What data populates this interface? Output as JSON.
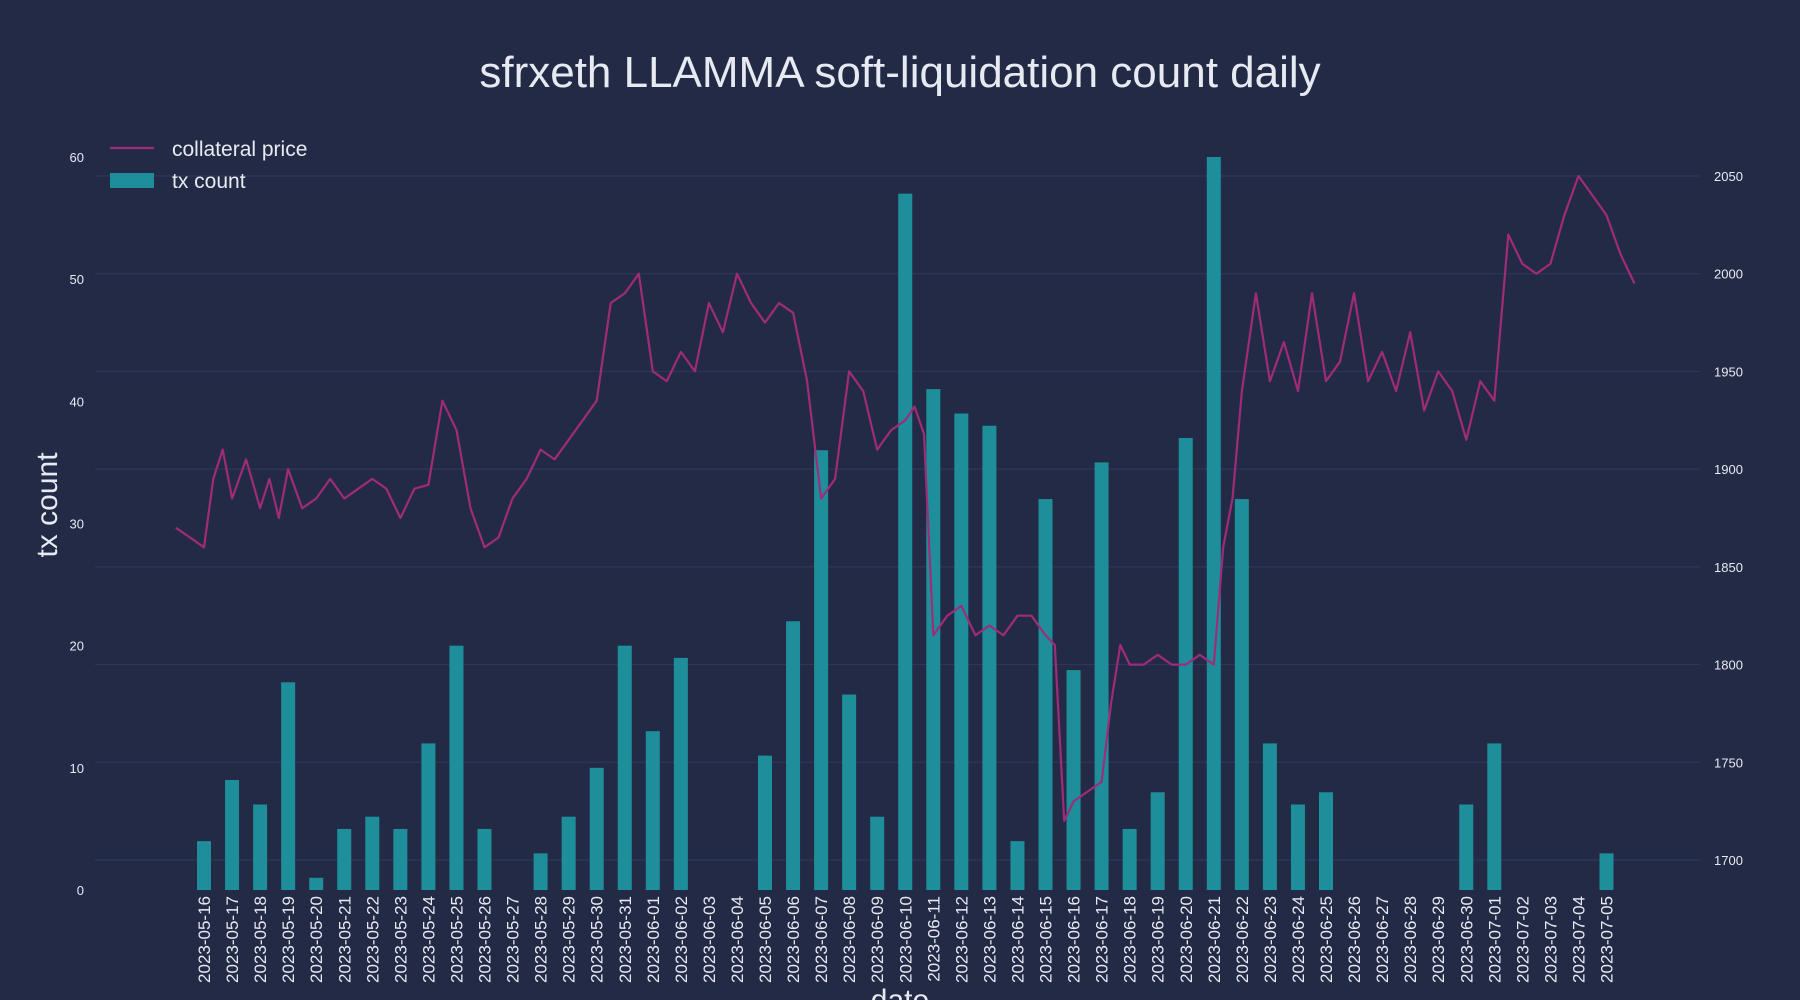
{
  "chart_data": {
    "type": "bar+line",
    "title": "sfrxeth LLAMMA soft-liquidation count daily",
    "ylabel": "tx count",
    "xlabel": "date",
    "legend_position": "top-left",
    "grid": true,
    "ylim": [
      0,
      60
    ],
    "y2lim": [
      1660,
      2055
    ],
    "y_ticks": [
      0,
      10,
      20,
      30,
      40,
      50,
      60
    ],
    "y2_ticks": [
      1700,
      1750,
      1800,
      1850,
      1900,
      1950,
      2000,
      2050
    ],
    "colors": {
      "bar": "#1e8f9a",
      "line": "#a02b78",
      "background": "#222a46",
      "grid": "#2e3757",
      "text": "#e8eaf2"
    },
    "categories": [
      "2023-05-16",
      "2023-05-17",
      "2023-05-18",
      "2023-05-19",
      "2023-05-20",
      "2023-05-21",
      "2023-05-22",
      "2023-05-23",
      "2023-05-24",
      "2023-05-25",
      "2023-05-26",
      "2023-05-27",
      "2023-05-28",
      "2023-05-29",
      "2023-05-30",
      "2023-05-31",
      "2023-06-01",
      "2023-06-02",
      "2023-06-03",
      "2023-06-04",
      "2023-06-05",
      "2023-06-06",
      "2023-06-07",
      "2023-06-08",
      "2023-06-09",
      "2023-06-10",
      "2023-06-11",
      "2023-06-12",
      "2023-06-13",
      "2023-06-14",
      "2023-06-15",
      "2023-06-16",
      "2023-06-17",
      "2023-06-18",
      "2023-06-19",
      "2023-06-20",
      "2023-06-21",
      "2023-06-22",
      "2023-06-23",
      "2023-06-24",
      "2023-06-25",
      "2023-06-26",
      "2023-06-27",
      "2023-06-28",
      "2023-06-29",
      "2023-06-30",
      "2023-07-01",
      "2023-07-02",
      "2023-07-03",
      "2023-07-04",
      "2023-07-05"
    ],
    "series": [
      {
        "name": "tx count",
        "kind": "bar",
        "axis": "left",
        "values": [
          4,
          9,
          7,
          17,
          1,
          5,
          6,
          5,
          12,
          20,
          5,
          0,
          3,
          6,
          10,
          20,
          13,
          19,
          0,
          0,
          11,
          22,
          36,
          16,
          6,
          57,
          41,
          39,
          38,
          4,
          32,
          18,
          35,
          5,
          8,
          37,
          60,
          32,
          12,
          7,
          8,
          0,
          0,
          0,
          0,
          7,
          12,
          0,
          0,
          0,
          3
        ]
      },
      {
        "name": "collateral price",
        "kind": "line",
        "axis": "right",
        "x": [
          "2023-05-15",
          "2023-05-15 12:00",
          "2023-05-16",
          "2023-05-16 08:00",
          "2023-05-16 16:00",
          "2023-05-17",
          "2023-05-17 12:00",
          "2023-05-18",
          "2023-05-18 08:00",
          "2023-05-18 16:00",
          "2023-05-19",
          "2023-05-19 12:00",
          "2023-05-20",
          "2023-05-20 12:00",
          "2023-05-21",
          "2023-05-21 12:00",
          "2023-05-22",
          "2023-05-22 12:00",
          "2023-05-23",
          "2023-05-23 12:00",
          "2023-05-24",
          "2023-05-24 12:00",
          "2023-05-25",
          "2023-05-25 12:00",
          "2023-05-26",
          "2023-05-26 12:00",
          "2023-05-27",
          "2023-05-27 12:00",
          "2023-05-28",
          "2023-05-28 12:00",
          "2023-05-29",
          "2023-05-29 12:00",
          "2023-05-30",
          "2023-05-30 12:00",
          "2023-05-31",
          "2023-05-31 12:00",
          "2023-06-01",
          "2023-06-01 12:00",
          "2023-06-02",
          "2023-06-02 12:00",
          "2023-06-03",
          "2023-06-03 12:00",
          "2023-06-04",
          "2023-06-04 12:00",
          "2023-06-05",
          "2023-06-05 12:00",
          "2023-06-06",
          "2023-06-06 12:00",
          "2023-06-07",
          "2023-06-07 12:00",
          "2023-06-08",
          "2023-06-08 12:00",
          "2023-06-09",
          "2023-06-09 12:00",
          "2023-06-10",
          "2023-06-10 08:00",
          "2023-06-10 16:00",
          "2023-06-11",
          "2023-06-11 12:00",
          "2023-06-12",
          "2023-06-12 12:00",
          "2023-06-13",
          "2023-06-13 12:00",
          "2023-06-14",
          "2023-06-14 12:00",
          "2023-06-15",
          "2023-06-15 08:00",
          "2023-06-15 16:00",
          "2023-06-16",
          "2023-06-16 12:00",
          "2023-06-17",
          "2023-06-17 08:00",
          "2023-06-17 16:00",
          "2023-06-18",
          "2023-06-18 12:00",
          "2023-06-19",
          "2023-06-19 12:00",
          "2023-06-20",
          "2023-06-20 12:00",
          "2023-06-21",
          "2023-06-21 08:00",
          "2023-06-21 16:00",
          "2023-06-22",
          "2023-06-22 12:00",
          "2023-06-23",
          "2023-06-23 12:00",
          "2023-06-24",
          "2023-06-24 12:00",
          "2023-06-25",
          "2023-06-25 12:00",
          "2023-06-26",
          "2023-06-26 12:00",
          "2023-06-27",
          "2023-06-27 12:00",
          "2023-06-28",
          "2023-06-28 12:00",
          "2023-06-29",
          "2023-06-29 12:00",
          "2023-06-30",
          "2023-06-30 12:00",
          "2023-07-01",
          "2023-07-01 12:00",
          "2023-07-02",
          "2023-07-02 12:00",
          "2023-07-03",
          "2023-07-03 12:00",
          "2023-07-04",
          "2023-07-04 12:00",
          "2023-07-05",
          "2023-07-05 12:00",
          "2023-07-06"
        ],
        "values": [
          1870,
          1865,
          1860,
          1895,
          1910,
          1885,
          1905,
          1880,
          1895,
          1875,
          1900,
          1880,
          1885,
          1895,
          1885,
          1890,
          1895,
          1890,
          1875,
          1890,
          1892,
          1935,
          1920,
          1880,
          1860,
          1865,
          1885,
          1895,
          1910,
          1905,
          1915,
          1925,
          1935,
          1985,
          1990,
          2000,
          1950,
          1945,
          1960,
          1950,
          1985,
          1970,
          2000,
          1985,
          1975,
          1985,
          1980,
          1945,
          1885,
          1895,
          1950,
          1940,
          1910,
          1920,
          1925,
          1932,
          1918,
          1815,
          1825,
          1830,
          1815,
          1820,
          1815,
          1825,
          1825,
          1815,
          1810,
          1720,
          1730,
          1735,
          1740,
          1780,
          1810,
          1800,
          1800,
          1805,
          1800,
          1800,
          1805,
          1800,
          1860,
          1885,
          1940,
          1990,
          1945,
          1965,
          1940,
          1990,
          1945,
          1955,
          1990,
          1945,
          1960,
          1940,
          1970,
          1930,
          1950,
          1940,
          1915,
          1945,
          1935,
          2020,
          2005,
          2000,
          2005,
          2030,
          2050,
          2040,
          2030,
          2010,
          1995
        ]
      }
    ]
  }
}
